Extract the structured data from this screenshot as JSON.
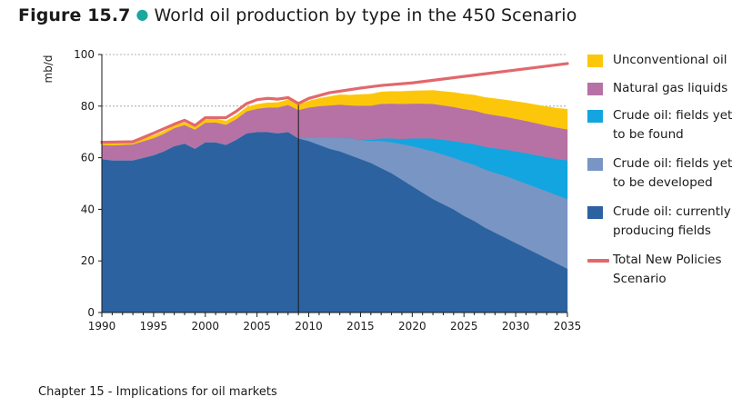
{
  "figure": {
    "number": "Figure 15.7",
    "title": "World oil production by type in the 450 Scenario"
  },
  "footer": {
    "text": "Chapter 15 - Implications for oil markets"
  },
  "colors": {
    "crude_producing": "#2c62a0",
    "crude_developed": "#7895c4",
    "crude_found": "#12a5e0",
    "ngl": "#b672a4",
    "unconventional": "#fcc70a",
    "total_line": "#e2686c"
  },
  "chart_data": {
    "type": "area",
    "stacked": true,
    "ylabel": "mb/d",
    "xlabel": "",
    "xlim": [
      1990,
      2035
    ],
    "ylim": [
      0,
      100
    ],
    "x_ticks": [
      1990,
      1995,
      2000,
      2005,
      2010,
      2015,
      2020,
      2025,
      2030,
      2035
    ],
    "y_ticks": [
      0,
      20,
      40,
      60,
      80,
      100
    ],
    "grid": "horizontal dashed",
    "vertical_marker_x": 2009,
    "legend_placement": "right",
    "x": [
      1990,
      1991,
      1992,
      1993,
      1994,
      1995,
      1996,
      1997,
      1998,
      1999,
      2000,
      2001,
      2002,
      2003,
      2004,
      2005,
      2006,
      2007,
      2008,
      2009,
      2010,
      2011,
      2012,
      2013,
      2014,
      2015,
      2016,
      2017,
      2018,
      2019,
      2020,
      2021,
      2022,
      2023,
      2024,
      2025,
      2026,
      2027,
      2028,
      2029,
      2030,
      2031,
      2032,
      2033,
      2034,
      2035
    ],
    "series": [
      {
        "name": "Crude oil: currently producing fields",
        "key": "crude_producing",
        "legend_label": "Crude oil: currently producing fields",
        "values": [
          59.5,
          59.0,
          59.0,
          59.0,
          60.0,
          61.0,
          62.5,
          64.5,
          65.5,
          63.5,
          66.0,
          66.0,
          65.0,
          67.0,
          69.5,
          70.0,
          70.0,
          69.5,
          70.0,
          67.5,
          66.5,
          65.0,
          63.5,
          62.5,
          61.0,
          59.5,
          58.0,
          56.0,
          54.0,
          51.5,
          49.0,
          46.5,
          44.0,
          42.0,
          40.0,
          37.5,
          35.5,
          33.0,
          31.0,
          29.0,
          27.0,
          25.0,
          23.0,
          21.0,
          19.0,
          17.0
        ]
      },
      {
        "name": "Crude oil: fields yet to be developed",
        "key": "crude_developed",
        "legend_label": "Crude oil: fields yet to be developed",
        "values": [
          0,
          0,
          0,
          0,
          0,
          0,
          0,
          0,
          0,
          0,
          0,
          0,
          0,
          0,
          0,
          0,
          0,
          0,
          0,
          0,
          1.5,
          3.0,
          4.5,
          5.5,
          6.5,
          7.5,
          8.5,
          10.5,
          12.0,
          13.8,
          15.5,
          17.0,
          18.5,
          19.2,
          20.0,
          21.0,
          21.8,
          22.5,
          23.2,
          24.0,
          24.5,
          25.0,
          25.5,
          26.0,
          26.5,
          27.0
        ]
      },
      {
        "name": "Crude oil: fields yet to be found",
        "key": "crude_found",
        "legend_label": "Crude oil: fields yet to be found",
        "values": [
          0,
          0,
          0,
          0,
          0,
          0,
          0,
          0,
          0,
          0,
          0,
          0,
          0,
          0,
          0,
          0,
          0,
          0,
          0,
          0,
          0,
          0,
          0,
          0,
          0,
          0.2,
          0.5,
          1.0,
          1.5,
          2.0,
          3.0,
          4.0,
          5.0,
          5.8,
          6.5,
          7.3,
          8.0,
          8.8,
          9.5,
          10.2,
          11.0,
          11.8,
          12.5,
          13.2,
          14.0,
          15.0
        ]
      },
      {
        "name": "Natural gas liquids",
        "key": "ngl",
        "legend_label": "Natural gas liquids",
        "values": [
          5.5,
          5.8,
          6.0,
          6.2,
          6.4,
          6.6,
          6.8,
          7.0,
          7.2,
          7.4,
          7.6,
          7.7,
          7.8,
          8.0,
          8.5,
          9.0,
          9.5,
          10.0,
          10.5,
          11.0,
          11.5,
          12.0,
          12.3,
          12.6,
          12.8,
          13.0,
          13.2,
          13.4,
          13.5,
          13.6,
          13.5,
          13.5,
          13.4,
          13.3,
          13.2,
          13.1,
          13.0,
          12.9,
          12.8,
          12.7,
          12.6,
          12.5,
          12.4,
          12.3,
          12.2,
          12.0
        ]
      },
      {
        "name": "Unconventional oil",
        "key": "unconventional",
        "legend_label": "Unconventional oil",
        "values": [
          1.0,
          1.0,
          1.0,
          1.0,
          1.0,
          1.0,
          1.0,
          1.0,
          1.0,
          1.0,
          1.2,
          1.3,
          1.4,
          1.5,
          1.6,
          1.7,
          1.8,
          1.9,
          2.0,
          2.0,
          2.5,
          3.0,
          3.4,
          3.8,
          4.0,
          4.3,
          4.5,
          4.6,
          4.7,
          4.8,
          4.9,
          5.0,
          5.2,
          5.4,
          5.6,
          5.8,
          6.0,
          6.2,
          6.4,
          6.5,
          6.7,
          6.9,
          7.1,
          7.3,
          7.5,
          7.8
        ]
      }
    ],
    "line_series": {
      "name": "Total New Policies Scenario",
      "key": "total_line",
      "legend_label": "Total New Policies Scenario",
      "x": [
        1990,
        1993,
        1995,
        1997,
        1998,
        1999,
        2000,
        2002,
        2003,
        2004,
        2005,
        2006,
        2007,
        2008,
        2009,
        2010,
        2012,
        2015,
        2017,
        2020,
        2025,
        2030,
        2035
      ],
      "values": [
        66.0,
        66.2,
        69.5,
        73.0,
        74.5,
        72.5,
        75.5,
        75.5,
        78.0,
        81.0,
        82.5,
        83.0,
        82.7,
        83.3,
        81.0,
        83.0,
        85.2,
        87.0,
        88.0,
        89.0,
        91.5,
        94.0,
        96.5
      ]
    }
  }
}
